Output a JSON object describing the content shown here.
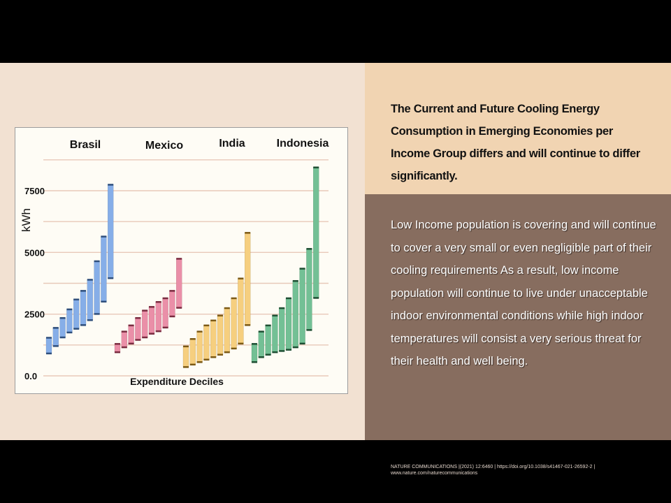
{
  "headline": "The Current and Future Cooling Energy Consumption in Emerging Economies per Income Group differs and will continue to differ significantly.",
  "body": "Low Income population is covering and will continue to cover a very small or even negligible part of their cooling requirements As a result, low income population will continue to live under unacceptable indoor environmental conditions while high indoor temperatures will consist a very serious threat for their health and well being.",
  "citation": {
    "line1": "NATURE COMMUNICATIONS |(2021) 12:6460 | https://doi.org/10.1038/s41467-021-26592-2 |",
    "line2": "www.nature.com/naturecommunications"
  },
  "colors": {
    "black_band": "#000000",
    "left_bg": "#f2e1d2",
    "right_top_bg": "#f1d4b2",
    "right_bottom_bg": "#876d5f",
    "chart_bg": "#fefcf5",
    "grid": "#e8c9b9"
  },
  "chart_data": {
    "type": "bar",
    "subtype": "floating-range",
    "xlabel": "Expenditure Deciles",
    "ylabel": "kWh",
    "yticks": [
      {
        "value": 0,
        "label": "0.0"
      },
      {
        "value": 2500,
        "label": "2500"
      },
      {
        "value": 5000,
        "label": "5000"
      },
      {
        "value": 7500,
        "label": "7500"
      }
    ],
    "ylim": [
      0,
      9000
    ],
    "grid": true,
    "series": [
      {
        "name": "Brasil",
        "color": "#86aee8",
        "cap_color": "#2f4f7c",
        "low": [
          900,
          1200,
          1550,
          1750,
          1900,
          2050,
          2250,
          2500,
          3000,
          3950
        ],
        "high": [
          1550,
          1950,
          2350,
          2700,
          3100,
          3450,
          3900,
          4650,
          5650,
          7750
        ]
      },
      {
        "name": "Mexico",
        "color": "#ea8fa8",
        "cap_color": "#7a2c40",
        "low": [
          950,
          1150,
          1300,
          1450,
          1550,
          1700,
          1800,
          1950,
          2400,
          2750
        ],
        "high": [
          1300,
          1800,
          2050,
          2350,
          2650,
          2800,
          3000,
          3150,
          3450,
          4750
        ]
      },
      {
        "name": "India",
        "color": "#f6cf7f",
        "cap_color": "#7c5a16",
        "low": [
          350,
          450,
          550,
          650,
          750,
          850,
          950,
          1100,
          1300,
          2050
        ],
        "high": [
          1200,
          1500,
          1800,
          2050,
          2250,
          2450,
          2750,
          3150,
          3950,
          5800
        ]
      },
      {
        "name": "Indonesia",
        "color": "#73c095",
        "cap_color": "#1e4f33",
        "low": [
          550,
          750,
          850,
          950,
          1000,
          1050,
          1150,
          1300,
          1850,
          3150
        ],
        "high": [
          1300,
          1800,
          2050,
          2450,
          2750,
          3150,
          3850,
          4350,
          5150,
          8450
        ]
      }
    ]
  }
}
